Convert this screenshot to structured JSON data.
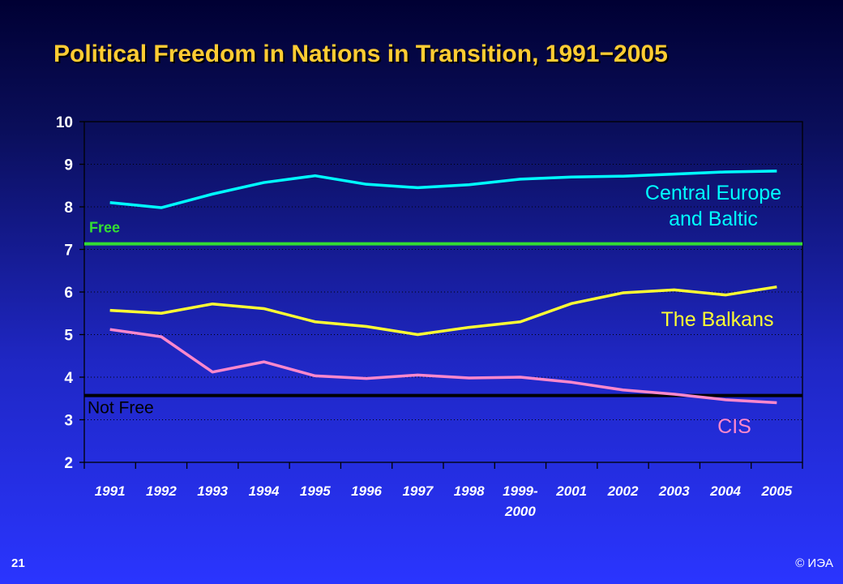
{
  "slide": {
    "number": "21",
    "copyright": "© ИЭА"
  },
  "chart_data": {
    "type": "line",
    "title": "Political Freedom in Nations in Transition, 1991−2005",
    "xlabel": "",
    "ylabel": "",
    "ylim": [
      2,
      10
    ],
    "yticks": [
      "2",
      "3",
      "4",
      "5",
      "6",
      "7",
      "8",
      "9",
      "10"
    ],
    "categories": [
      "1991",
      "1992",
      "1993",
      "1994",
      "1995",
      "1996",
      "1997",
      "1998",
      "1999-2000",
      "2001",
      "2002",
      "2003",
      "2004",
      "2005"
    ],
    "category_labels": [
      [
        "1991"
      ],
      [
        "1992"
      ],
      [
        "1993"
      ],
      [
        "1994"
      ],
      [
        "1995"
      ],
      [
        "1996"
      ],
      [
        "1997"
      ],
      [
        "1998"
      ],
      [
        "1999-",
        "2000"
      ],
      [
        "2001"
      ],
      [
        "2002"
      ],
      [
        "2003"
      ],
      [
        "2004"
      ],
      [
        "2005"
      ]
    ],
    "grid": true,
    "series": [
      {
        "name": "Central Europe and Baltic",
        "label_lines": [
          "Central Europe",
          "and Baltic"
        ],
        "color": "#00ffff",
        "values": [
          8.1,
          7.98,
          8.3,
          8.57,
          8.73,
          8.53,
          8.45,
          8.52,
          8.65,
          8.7,
          8.72,
          8.77,
          8.82,
          8.84
        ]
      },
      {
        "name": "The Balkans",
        "label_lines": [
          "The Balkans"
        ],
        "color": "#ffff33",
        "values": [
          5.57,
          5.5,
          5.72,
          5.61,
          5.3,
          5.19,
          5.0,
          5.17,
          5.3,
          5.73,
          5.98,
          6.05,
          5.93,
          6.12
        ]
      },
      {
        "name": "CIS",
        "label_lines": [
          "CIS"
        ],
        "color": "#ff88cc",
        "values": [
          5.12,
          4.95,
          4.12,
          4.36,
          4.03,
          3.97,
          4.05,
          3.98,
          4.0,
          3.88,
          3.7,
          3.6,
          3.47,
          3.4
        ]
      }
    ],
    "thresholds": [
      {
        "label": "Free",
        "value": 7.13,
        "color": "#33dd33"
      },
      {
        "label": "Not Free",
        "value": 3.57,
        "color": "#000000"
      }
    ]
  }
}
